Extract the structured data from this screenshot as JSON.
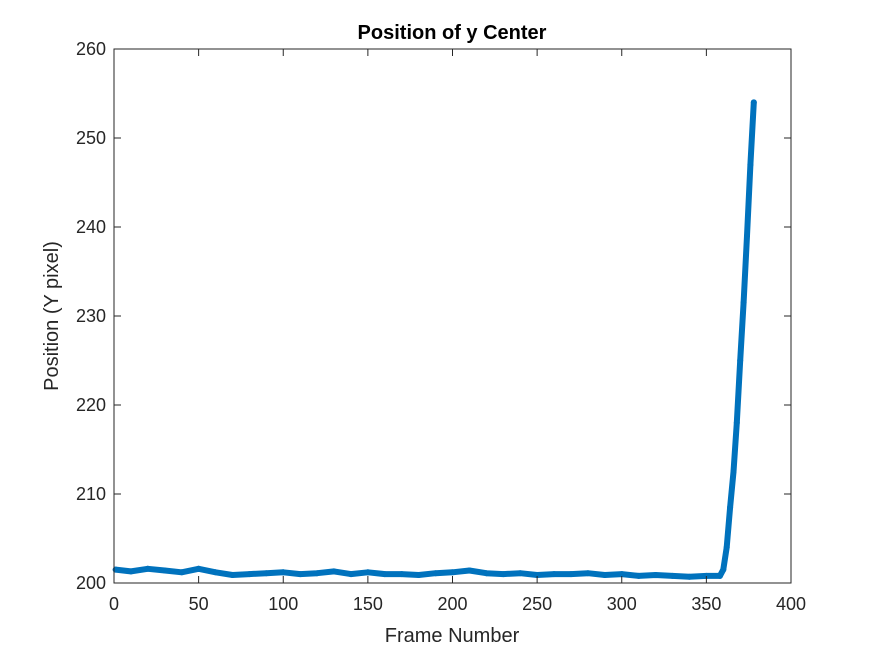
{
  "chart_data": {
    "type": "line",
    "title": "Position of y Center",
    "xlabel": "Frame Number",
    "ylabel": "Position (Y pixel)",
    "xlim": [
      0,
      400
    ],
    "ylim": [
      200,
      260
    ],
    "x_ticks": [
      0,
      50,
      100,
      150,
      200,
      250,
      300,
      350,
      400
    ],
    "y_ticks": [
      200,
      210,
      220,
      230,
      240,
      250,
      260
    ],
    "grid": false,
    "legend": "none",
    "series": [
      {
        "color": "#0072BD",
        "x": [
          1,
          10,
          20,
          30,
          40,
          50,
          60,
          70,
          80,
          90,
          100,
          110,
          120,
          130,
          140,
          150,
          160,
          170,
          180,
          190,
          200,
          210,
          220,
          230,
          240,
          250,
          260,
          270,
          280,
          290,
          300,
          310,
          320,
          330,
          340,
          350,
          358,
          360,
          362,
          364,
          366,
          368,
          370,
          372,
          374,
          376,
          378
        ],
        "y": [
          201.5,
          201.3,
          201.6,
          201.4,
          201.2,
          201.6,
          201.2,
          200.9,
          201.0,
          201.1,
          201.2,
          201.0,
          201.1,
          201.3,
          201.0,
          201.2,
          201.0,
          201.0,
          200.9,
          201.1,
          201.2,
          201.4,
          201.1,
          201.0,
          201.1,
          200.9,
          201.0,
          201.0,
          201.1,
          200.9,
          201.0,
          200.8,
          200.9,
          200.8,
          200.7,
          200.8,
          200.8,
          201.5,
          204.0,
          208.5,
          212.5,
          218.0,
          225.0,
          231.5,
          239.0,
          247.0,
          254.0
        ]
      }
    ]
  }
}
